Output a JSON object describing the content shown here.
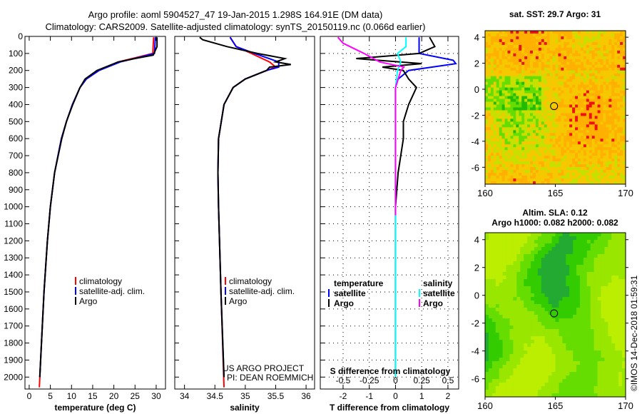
{
  "title_line1": "Argo profile: aoml 5904527_47 19-Jan-2015 1.298S 164.91E (DM data)",
  "title_line2": "Climatology: CARS2009. Satellite-adjusted climatology: synTS_20150119.nc (0.066d earlier)",
  "credit": "©IMOS 14-Dec-2018 01:59:31",
  "project": [
    "US ARGO PROJECT",
    "PI: DEAN ROEMMICH"
  ],
  "colors": {
    "climatology": "#ff0000",
    "satellite": "#0000ff",
    "argo": "#000000",
    "sat_s": "#00ffff",
    "argo_s": "#ff00ff"
  },
  "chart_data": [
    {
      "type": "line",
      "name": "temperature",
      "xlabel": "temperature (deg C)",
      "xlim": [
        -1,
        32.2
      ],
      "ylim": [
        0,
        2070
      ],
      "xticks": [
        0,
        5,
        10,
        15,
        20,
        25,
        30
      ],
      "yticks": [
        0,
        100,
        200,
        300,
        400,
        500,
        600,
        700,
        800,
        900,
        1000,
        1100,
        1200,
        1300,
        1400,
        1500,
        1600,
        1700,
        1800,
        1900,
        2000
      ],
      "legend": [
        "climatology",
        "satellite-adj. clim.",
        "Argo"
      ],
      "series": [
        {
          "name": "climatology",
          "color": "#ff0000",
          "depth": [
            5,
            100,
            120,
            150,
            200,
            250,
            300,
            400,
            500,
            600,
            800,
            1000,
            1200,
            1500,
            1800,
            2060
          ],
          "values": [
            29.4,
            29.2,
            26,
            21,
            16.5,
            13.5,
            12,
            10.2,
            8.8,
            7.6,
            6,
            5,
            4.3,
            3.5,
            2.9,
            2.4
          ]
        },
        {
          "name": "satellite-adj. clim.",
          "color": "#0000ff",
          "depth": [
            5,
            100,
            120,
            150,
            200,
            250,
            300,
            400,
            500,
            600,
            800,
            1000,
            1200,
            1500,
            1800,
            2000
          ],
          "values": [
            29.8,
            29.6,
            26.5,
            21.5,
            16.5,
            13.5,
            12,
            10.2,
            8.8,
            7.6,
            6,
            5,
            4.3,
            3.5,
            2.9,
            2.5
          ]
        },
        {
          "name": "Argo",
          "color": "#000000",
          "depth": [
            5,
            60,
            110,
            130,
            150,
            200,
            250,
            300,
            400,
            500,
            600,
            800,
            1000,
            1200,
            1500,
            1800,
            2000
          ],
          "values": [
            30.2,
            30.2,
            29.3,
            25,
            21,
            16,
            13.2,
            12,
            10.3,
            8.8,
            7.7,
            6,
            5,
            4.3,
            3.5,
            2.9,
            2.5
          ]
        }
      ]
    },
    {
      "type": "line",
      "name": "salinity",
      "xlabel": "salinity",
      "xlim": [
        33.84,
        36.14
      ],
      "ylim": [
        0,
        2070
      ],
      "xticks": [
        34,
        34.5,
        35,
        35.5,
        36
      ],
      "legend": [
        "climatology",
        "satellite-adj. clim.",
        "Argo"
      ],
      "series": [
        {
          "name": "climatology",
          "color": "#ff0000",
          "depth": [
            5,
            60,
            100,
            150,
            180,
            200,
            250,
            300,
            400,
            600,
            800,
            1000,
            1500,
            2060
          ],
          "values": [
            34.75,
            34.85,
            35.1,
            35.4,
            35.5,
            35.35,
            35.0,
            34.8,
            34.65,
            34.56,
            34.55,
            34.56,
            34.6,
            34.65
          ]
        },
        {
          "name": "satellite-adj. clim.",
          "color": "#0000ff",
          "depth": [
            5,
            60,
            100,
            150,
            180,
            200,
            250,
            300,
            400,
            600,
            800,
            1000,
            1500,
            2000
          ],
          "values": [
            34.75,
            34.85,
            35.15,
            35.55,
            35.55,
            35.35,
            35.0,
            34.8,
            34.65,
            34.56,
            34.55,
            34.56,
            34.6,
            34.65
          ]
        },
        {
          "name": "Argo",
          "color": "#000000",
          "depth": [
            5,
            20,
            60,
            100,
            130,
            150,
            165,
            180,
            200,
            250,
            300,
            400,
            600,
            800,
            1000,
            1500,
            2000
          ],
          "values": [
            34.25,
            34.3,
            34.7,
            35.2,
            35.65,
            35.5,
            35.75,
            35.4,
            35.35,
            35.0,
            34.8,
            34.65,
            34.56,
            34.55,
            34.56,
            34.6,
            34.65
          ]
        }
      ]
    },
    {
      "type": "line",
      "name": "difference",
      "xlabel": "T difference from climatology",
      "s_label": "S difference from climatology",
      "xlim": [
        -2.87,
        2.41
      ],
      "ylim": [
        0,
        2070
      ],
      "xticks": [
        -2,
        -1,
        0,
        1,
        2
      ],
      "s_ticks": [
        "-0.5",
        "-0.25",
        "0",
        "0.25",
        "0.5"
      ],
      "s_scale": 0.25,
      "legend_t": [
        "temperature",
        "satellite",
        "Argo"
      ],
      "legend_s": [
        "salinity",
        "satellite",
        "Argo"
      ],
      "series": [
        {
          "name": "T satellite",
          "color": "#0000ff",
          "depth": [
            5,
            100,
            140,
            160,
            200,
            250,
            300,
            400,
            600,
            1000,
            2000
          ],
          "values": [
            0.9,
            0.9,
            2.2,
            2.3,
            0.5,
            0.1,
            0,
            0,
            0,
            0,
            0
          ]
        },
        {
          "name": "T Argo",
          "color": "#000000",
          "depth": [
            5,
            60,
            100,
            130,
            160,
            180,
            200,
            250,
            300,
            400,
            500,
            600,
            800,
            1000,
            1500,
            2000
          ],
          "values": [
            1.3,
            1.5,
            0.9,
            -1.5,
            1.0,
            -0.5,
            0.3,
            0.5,
            0.8,
            0.5,
            0.3,
            0.3,
            0.1,
            0,
            0,
            0
          ]
        },
        {
          "name": "S satellite",
          "color": "#00ffff",
          "depth": [
            5,
            60,
            100,
            150,
            200,
            300,
            500,
            1000,
            2000
          ],
          "values": [
            0.1,
            0.1,
            0.02,
            0.05,
            0.02,
            0,
            0,
            0,
            0
          ]
        },
        {
          "name": "S Argo",
          "color": "#ff00ff",
          "depth": [
            5,
            40,
            100,
            150,
            180,
            200,
            300,
            500,
            800,
            1050
          ],
          "values": [
            -0.55,
            -0.5,
            -0.3,
            -0.15,
            0.08,
            0.05,
            0,
            0,
            0,
            0
          ]
        }
      ]
    },
    {
      "type": "heatmap",
      "name": "sst-map",
      "title": "sat. SST: 29.7 Argo: 31",
      "xlim": [
        160,
        170
      ],
      "ylim": [
        -7.3,
        4.5
      ],
      "xticks": [
        160,
        165,
        170
      ],
      "yticks": [
        4,
        2,
        0,
        -2,
        -4,
        -6
      ],
      "marker": [
        164.91,
        -1.298
      ]
    },
    {
      "type": "heatmap",
      "name": "sla-map",
      "title": "Altim. SLA: 0.12",
      "subtitle": "Argo h1000: 0.082 h2000: 0.082",
      "xlim": [
        160,
        170
      ],
      "ylim": [
        -7.3,
        4.5
      ],
      "xticks": [
        160,
        165,
        170
      ],
      "yticks": [
        4,
        2,
        0,
        -2,
        -4,
        -6
      ],
      "marker": [
        164.91,
        -1.298
      ]
    }
  ]
}
